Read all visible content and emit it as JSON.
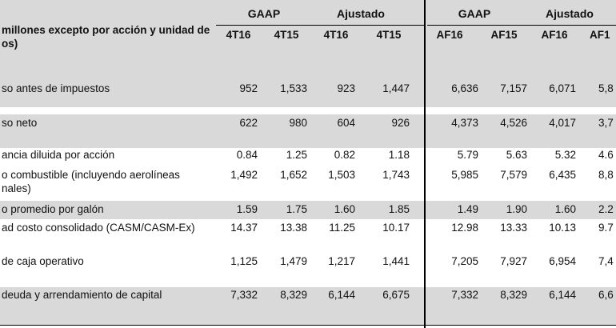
{
  "header": {
    "group_gaap_q": "GAAP",
    "group_adj_q": "Ajustado",
    "group_gaap_y": "GAAP",
    "group_adj_y": "Ajustado",
    "col_labels": [
      "4T16",
      "4T15",
      "4T16",
      "4T15",
      "AF16",
      "AF15",
      "AF16",
      "AF1"
    ],
    "row_header_line1": " millones excepto por acción y unidad de",
    "row_header_line2": "os)"
  },
  "rows": [
    {
      "label": "so antes de impuestos",
      "label2": "",
      "values": [
        "952",
        "1,533",
        "923",
        "1,447",
        "6,636",
        "7,157",
        "6,071",
        "5,8"
      ]
    },
    {
      "label": "so neto",
      "label2": "",
      "values": [
        "622",
        "980",
        "604",
        "926",
        "4,373",
        "4,526",
        "4,017",
        "3,7"
      ]
    },
    {
      "label": "ancia diluida por acción",
      "label2": "",
      "values": [
        "0.84",
        "1.25",
        "0.82",
        "1.18",
        "5.79",
        "5.63",
        "5.32",
        "4.6"
      ]
    },
    {
      "label": "o combustible (incluyendo aerolíneas",
      "label2": "nales)",
      "values": [
        "1,492",
        "1,652",
        "1,503",
        "1,743",
        "5,985",
        "7,579",
        "6,435",
        "8,8"
      ]
    },
    {
      "label": "o promedio por galón",
      "label2": "",
      "values": [
        "1.59",
        "1.75",
        "1.60",
        "1.85",
        "1.49",
        "1.90",
        "1.60",
        "2.2"
      ]
    },
    {
      "label": "ad costo consolidado  (CASM/CASM-Ex)",
      "label2": "",
      "values": [
        "14.37",
        "13.38",
        "11.25",
        "10.17",
        "12.98",
        "13.33",
        "10.13",
        "9.7"
      ]
    },
    {
      "label": " de caja operativo",
      "label2": "",
      "values": [
        "1,125",
        "1,479",
        "1,217",
        "1,441",
        "7,205",
        "7,927",
        "6,954",
        "7,4"
      ]
    },
    {
      "label": " deuda y arrendamiento de capital",
      "label2": "",
      "values": [
        "7,332",
        "8,329",
        "6,144",
        "6,675",
        "7,332",
        "8,329",
        "6,144",
        "6,6"
      ]
    }
  ]
}
